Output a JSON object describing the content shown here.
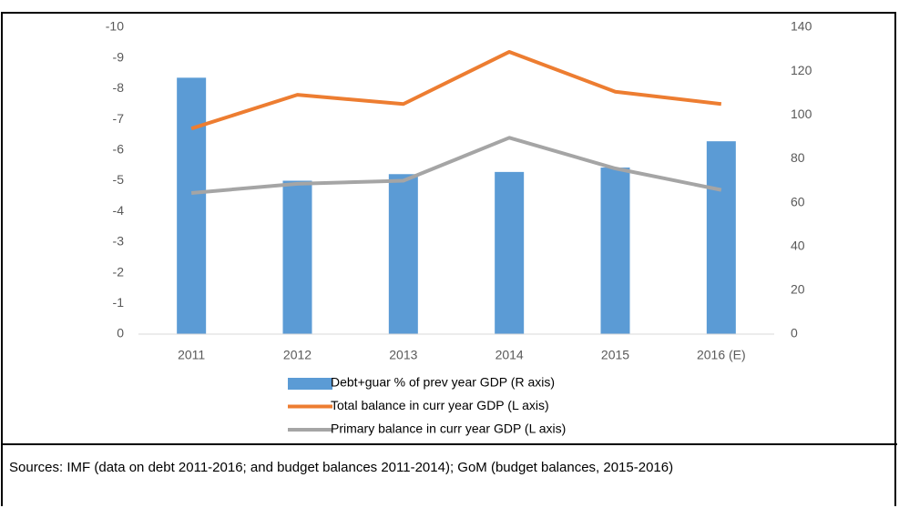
{
  "chart_data": {
    "type": "bar_line_dual_axis",
    "categories": [
      "2011",
      "2012",
      "2013",
      "2014",
      "2015",
      "2016 (E)"
    ],
    "series": [
      {
        "name": "Debt+guar % of prev year GDP (R axis)",
        "type": "bar",
        "axis": "y2",
        "color": "#5b9bd5",
        "values": [
          117,
          70,
          73,
          74,
          76,
          88
        ]
      },
      {
        "name": "Total balance in curr year GDP (L axis)",
        "type": "line",
        "axis": "y",
        "color": "#ed7d31",
        "values": [
          -6.7,
          -7.8,
          -7.5,
          -9.2,
          -7.9,
          -7.5
        ]
      },
      {
        "name": "Primary balance in curr year GDP (L axis)",
        "type": "line",
        "axis": "y",
        "color": "#a5a5a5",
        "values": [
          -4.6,
          -4.9,
          -5.0,
          -6.4,
          -5.4,
          -4.7
        ]
      }
    ],
    "ylim": [
      0,
      -10
    ],
    "yticks": [
      -10,
      -9,
      -8,
      -7,
      -6,
      -5,
      -4,
      -3,
      -2,
      -1,
      0
    ],
    "y2lim": [
      0,
      140
    ],
    "y2ticks": [
      0,
      20,
      40,
      60,
      80,
      100,
      120,
      140
    ],
    "grid": false,
    "legend": "bottom"
  },
  "source": "Sources: IMF (data on debt 2011-2016; and budget balances 2011-2014); GoM (budget balances, 2015-2016)"
}
